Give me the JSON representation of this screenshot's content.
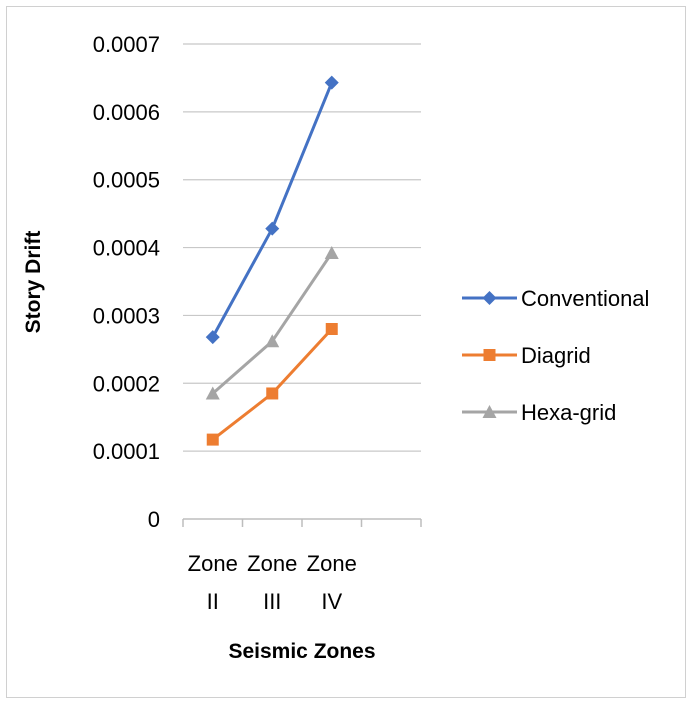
{
  "chart_data": {
    "type": "line",
    "categories": [
      [
        "Zone",
        "II"
      ],
      [
        "Zone",
        "III"
      ],
      [
        "Zone",
        "IV"
      ]
    ],
    "category_slots": 4,
    "series": [
      {
        "name": "Conventional",
        "color": "#4472C4",
        "marker": "diamond",
        "values": [
          0.000268,
          0.000428,
          0.000643
        ]
      },
      {
        "name": "Diagrid",
        "color": "#ED7D31",
        "marker": "square",
        "values": [
          0.000117,
          0.000185,
          0.00028
        ]
      },
      {
        "name": "Hexa-grid",
        "color": "#A5A5A5",
        "marker": "triangle",
        "values": [
          0.000185,
          0.000262,
          0.000392
        ]
      }
    ],
    "y_ticks": [
      "0",
      "0.0001",
      "0.0002",
      "0.0003",
      "0.0004",
      "0.0005",
      "0.0006",
      "0.0007"
    ],
    "ylim": [
      0,
      0.0007
    ],
    "xlabel": "Seismic Zones",
    "ylabel": "Story Drift",
    "grid": true,
    "legend_position": "right"
  }
}
